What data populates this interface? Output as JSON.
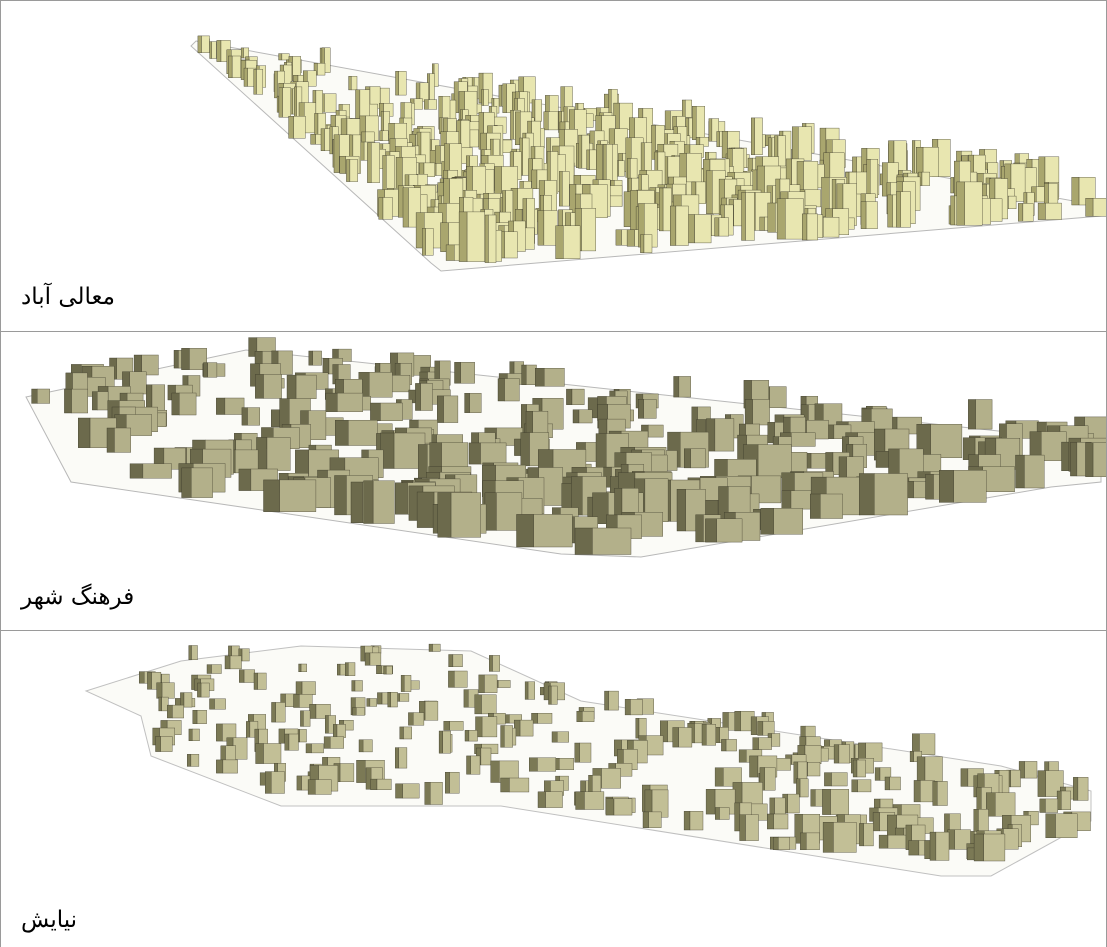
{
  "panels": [
    {
      "label": "معالی آباد",
      "building_color": "#e8e6b0",
      "shadow_color": "#a9a66e"
    },
    {
      "label": "فرهنگ شهر",
      "building_color": "#b3b08a",
      "shadow_color": "#6c6a4c"
    },
    {
      "label": "نیایش",
      "building_color": "#c2bf96",
      "shadow_color": "#7b7955"
    }
  ]
}
